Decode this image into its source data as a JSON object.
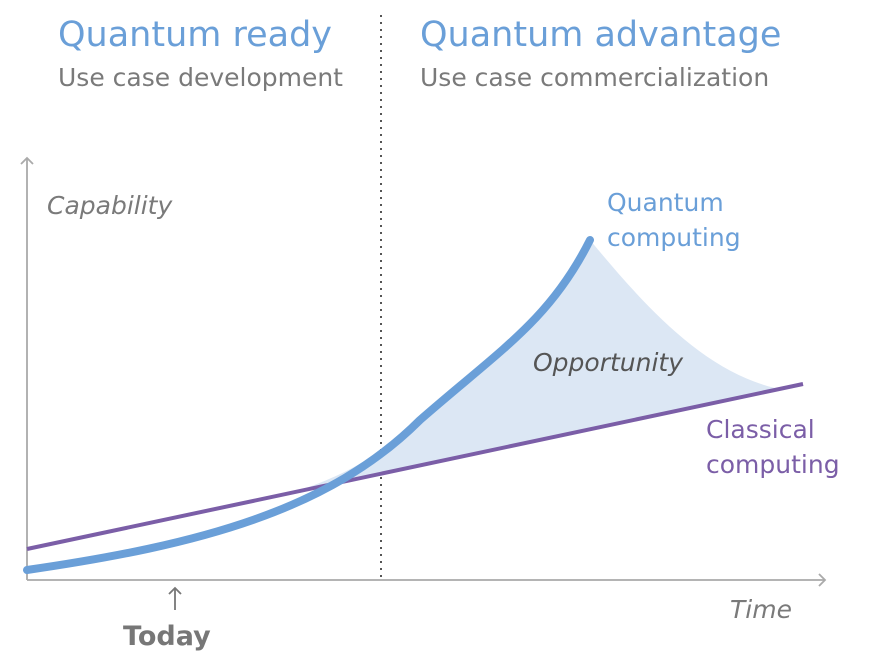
{
  "header": {
    "left": {
      "title": "Quantum ready",
      "subtitle": "Use case development"
    },
    "right": {
      "title": "Quantum advantage",
      "subtitle": "Use case commercialization"
    }
  },
  "axes": {
    "y_label": "Capability",
    "x_label": "Time",
    "marker": "Today"
  },
  "labels": {
    "quantum": [
      "Quantum",
      "computing"
    ],
    "classical": [
      "Classical",
      "computing"
    ],
    "region": "Opportunity"
  }
}
